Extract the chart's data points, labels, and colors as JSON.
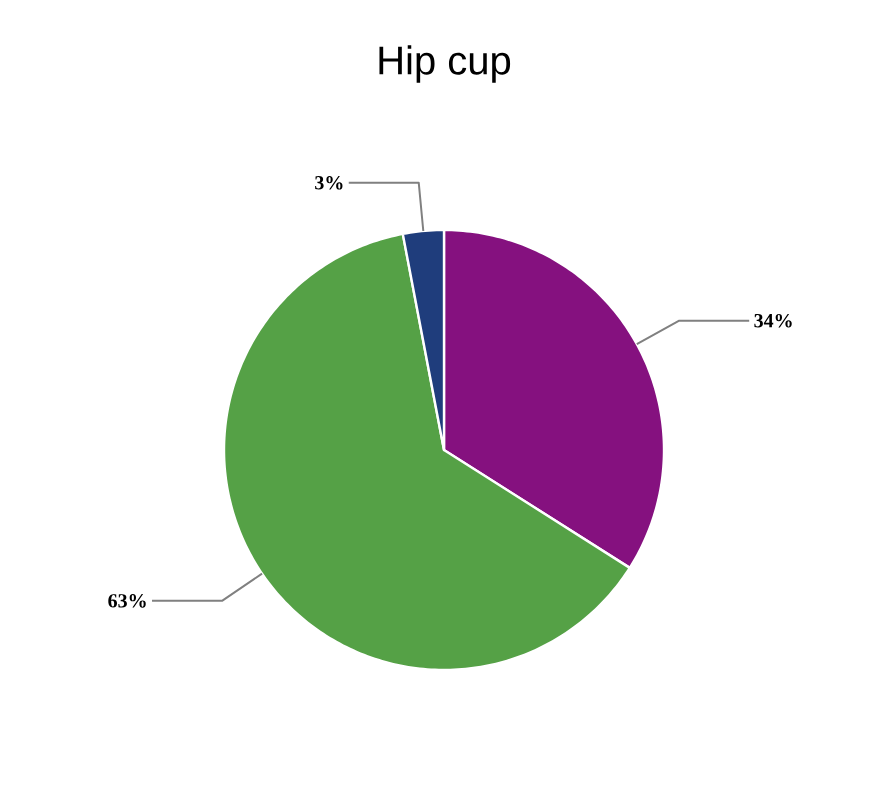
{
  "chart_data": {
    "type": "pie",
    "title": "Hip cup",
    "categories": [
      null,
      null,
      null
    ],
    "values": [
      34,
      63,
      3
    ],
    "value_labels": [
      "34%",
      "63%",
      "3%"
    ],
    "colors": [
      "#85117f",
      "#55a146",
      "#1f3d7c"
    ]
  }
}
